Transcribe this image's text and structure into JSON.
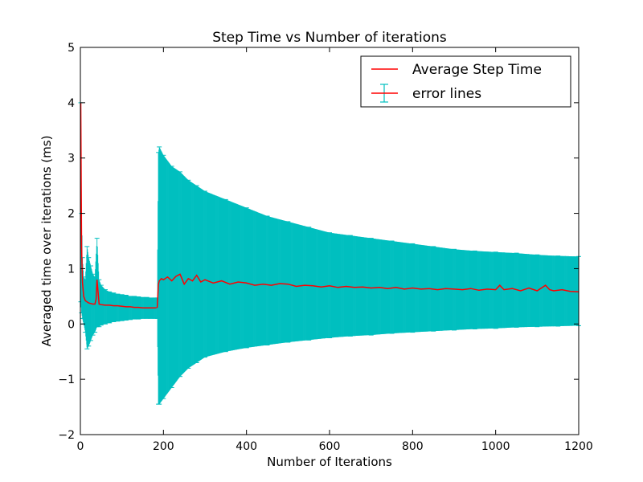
{
  "chart_data": {
    "type": "line",
    "title": "Step Time vs Number of iterations",
    "xlabel": "Number of Iterations",
    "ylabel": "Averaged time over iterations (ms)",
    "xlim": [
      0,
      1200
    ],
    "ylim": [
      -2,
      5
    ],
    "x_ticks": [
      0,
      200,
      400,
      600,
      800,
      1000,
      1200
    ],
    "y_ticks": [
      -2,
      -1,
      0,
      1,
      2,
      3,
      4,
      5
    ],
    "x_tick_labels": [
      "0",
      "200",
      "400",
      "600",
      "800",
      "1000",
      "1200"
    ],
    "y_tick_labels": [
      "−2",
      "−1",
      "0",
      "1",
      "2",
      "3",
      "4",
      "5"
    ],
    "grid": false,
    "legend_position": "top-right",
    "series": [
      {
        "name": "Average Step Time",
        "kind": "line",
        "color": "#ff0000",
        "x": [
          1,
          2,
          3,
          5,
          8,
          12,
          16,
          20,
          25,
          30,
          35,
          38,
          40,
          45,
          50,
          60,
          70,
          80,
          90,
          100,
          110,
          120,
          130,
          140,
          150,
          160,
          170,
          180,
          185,
          188,
          190,
          195,
          200,
          210,
          220,
          230,
          240,
          250,
          260,
          270,
          280,
          290,
          300,
          320,
          340,
          360,
          380,
          400,
          420,
          440,
          460,
          480,
          500,
          520,
          540,
          560,
          580,
          600,
          620,
          640,
          660,
          680,
          700,
          720,
          740,
          760,
          780,
          800,
          820,
          840,
          860,
          880,
          900,
          920,
          940,
          960,
          980,
          1000,
          1010,
          1020,
          1040,
          1060,
          1080,
          1100,
          1120,
          1130,
          1140,
          1160,
          1180,
          1200
        ],
        "y": [
          4.0,
          2.6,
          1.4,
          0.75,
          0.5,
          0.42,
          0.4,
          0.38,
          0.37,
          0.36,
          0.36,
          0.45,
          0.8,
          0.36,
          0.35,
          0.34,
          0.34,
          0.33,
          0.33,
          0.32,
          0.31,
          0.31,
          0.3,
          0.3,
          0.29,
          0.29,
          0.29,
          0.29,
          0.3,
          0.72,
          0.78,
          0.82,
          0.8,
          0.85,
          0.78,
          0.86,
          0.9,
          0.72,
          0.82,
          0.78,
          0.88,
          0.76,
          0.8,
          0.74,
          0.78,
          0.72,
          0.76,
          0.74,
          0.7,
          0.72,
          0.7,
          0.73,
          0.72,
          0.68,
          0.7,
          0.69,
          0.67,
          0.69,
          0.66,
          0.68,
          0.66,
          0.67,
          0.65,
          0.66,
          0.64,
          0.66,
          0.63,
          0.65,
          0.63,
          0.64,
          0.62,
          0.64,
          0.63,
          0.62,
          0.64,
          0.61,
          0.63,
          0.62,
          0.7,
          0.62,
          0.64,
          0.6,
          0.65,
          0.6,
          0.7,
          0.62,
          0.6,
          0.62,
          0.59,
          0.58
        ]
      },
      {
        "name": "error lines",
        "kind": "errorbar",
        "color": "#00bfbf",
        "x": [
          1,
          3,
          5,
          8,
          12,
          16,
          20,
          25,
          30,
          35,
          40,
          45,
          50,
          60,
          70,
          80,
          90,
          100,
          110,
          120,
          130,
          140,
          150,
          160,
          170,
          180,
          185,
          188,
          190,
          200,
          220,
          240,
          260,
          280,
          300,
          350,
          400,
          450,
          500,
          550,
          600,
          650,
          700,
          750,
          800,
          850,
          900,
          950,
          1000,
          1050,
          1100,
          1150,
          1200
        ],
        "upper": [
          4.0,
          2.0,
          1.2,
          0.85,
          0.8,
          1.4,
          1.2,
          1.05,
          0.9,
          0.85,
          1.55,
          0.8,
          0.7,
          0.62,
          0.58,
          0.56,
          0.54,
          0.53,
          0.52,
          0.5,
          0.5,
          0.49,
          0.48,
          0.48,
          0.47,
          0.47,
          0.47,
          3.1,
          3.2,
          3.05,
          2.85,
          2.75,
          2.6,
          2.5,
          2.4,
          2.25,
          2.1,
          1.95,
          1.85,
          1.75,
          1.65,
          1.6,
          1.55,
          1.5,
          1.45,
          1.4,
          1.35,
          1.32,
          1.3,
          1.28,
          1.25,
          1.23,
          1.22
        ],
        "lower": [
          0.4,
          0.2,
          0.1,
          0.0,
          -0.15,
          -0.45,
          -0.4,
          -0.3,
          -0.2,
          -0.15,
          -0.05,
          -0.05,
          -0.02,
          0.0,
          0.02,
          0.04,
          0.05,
          0.06,
          0.07,
          0.08,
          0.09,
          0.09,
          0.1,
          0.1,
          0.1,
          0.1,
          0.1,
          -1.45,
          -1.45,
          -1.35,
          -1.15,
          -0.95,
          -0.8,
          -0.7,
          -0.6,
          -0.5,
          -0.43,
          -0.38,
          -0.33,
          -0.29,
          -0.25,
          -0.22,
          -0.2,
          -0.17,
          -0.15,
          -0.13,
          -0.11,
          -0.09,
          -0.08,
          -0.06,
          -0.05,
          -0.04,
          -0.03
        ]
      }
    ]
  }
}
